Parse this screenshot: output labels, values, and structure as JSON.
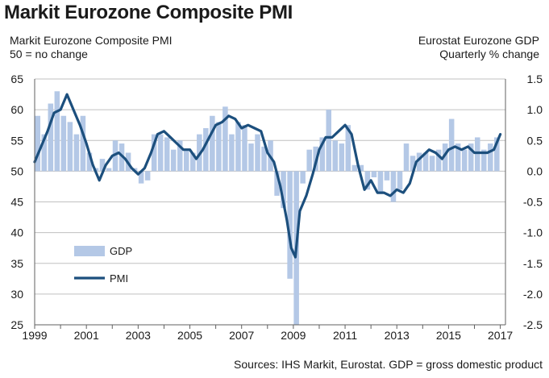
{
  "title": "Markit Eurozone Composite PMI",
  "left_axis_title": [
    "Markit Eurozone Composite PMI",
    "50 = no change"
  ],
  "right_axis_title": [
    "Eurostat Eurozone GDP",
    "Quarterly % change"
  ],
  "source": "Sources: IHS Markit, Eurostat. GDP = gross domestic product",
  "colors": {
    "gdp": "#b4c8e6",
    "pmi": "#1c4f7d",
    "grid": "#c0c0c0",
    "axis": "#606060"
  },
  "chart_data": {
    "type": "bar",
    "title": "Markit Eurozone Composite PMI",
    "x_ticks": [
      "1999",
      "2001",
      "2003",
      "2005",
      "2007",
      "2009",
      "2011",
      "2013",
      "2015",
      "2017"
    ],
    "xlim": [
      1999,
      2017.2
    ],
    "y_left": {
      "label": "Markit Eurozone Composite PMI",
      "ylim": [
        25,
        65
      ],
      "ticks": [
        25,
        30,
        35,
        40,
        45,
        50,
        55,
        60,
        65
      ]
    },
    "y_right": {
      "label": "Eurostat Eurozone GDP",
      "ylim": [
        -2.5,
        1.5
      ],
      "ticks": [
        "-2.5",
        "-2.0",
        "-1.5",
        "-1.0",
        "-0.5",
        "0.0",
        "0.5",
        "1.0",
        "1.5"
      ]
    },
    "grid": true,
    "legend": {
      "position": "lower-left",
      "entries": [
        "GDP",
        "PMI"
      ]
    },
    "series": [
      {
        "name": "GDP",
        "type": "bar",
        "axis": "right",
        "x": [
          1999.0,
          1999.25,
          1999.5,
          1999.75,
          2000.0,
          2000.25,
          2000.5,
          2000.75,
          2001.0,
          2001.25,
          2001.5,
          2001.75,
          2002.0,
          2002.25,
          2002.5,
          2002.75,
          2003.0,
          2003.25,
          2003.5,
          2003.75,
          2004.0,
          2004.25,
          2004.5,
          2004.75,
          2005.0,
          2005.25,
          2005.5,
          2005.75,
          2006.0,
          2006.25,
          2006.5,
          2006.75,
          2007.0,
          2007.25,
          2007.5,
          2007.75,
          2008.0,
          2008.25,
          2008.5,
          2008.75,
          2009.0,
          2009.25,
          2009.5,
          2009.75,
          2010.0,
          2010.25,
          2010.5,
          2010.75,
          2011.0,
          2011.25,
          2011.5,
          2011.75,
          2012.0,
          2012.25,
          2012.5,
          2012.75,
          2013.0,
          2013.25,
          2013.5,
          2013.75,
          2014.0,
          2014.25,
          2014.5,
          2014.75,
          2015.0,
          2015.25,
          2015.5,
          2015.75,
          2016.0,
          2016.25,
          2016.5,
          2016.75
        ],
        "values": [
          0.9,
          0.6,
          1.1,
          1.3,
          0.9,
          0.8,
          0.6,
          0.9,
          0.3,
          0.05,
          0.2,
          0.05,
          0.5,
          0.45,
          0.3,
          0.05,
          -0.2,
          -0.15,
          0.6,
          0.6,
          0.55,
          0.35,
          0.5,
          0.35,
          0.3,
          0.6,
          0.7,
          0.9,
          0.8,
          1.05,
          0.6,
          0.8,
          0.75,
          0.45,
          0.6,
          0.4,
          0.5,
          -0.4,
          -0.6,
          -1.75,
          -2.5,
          -0.2,
          0.35,
          0.4,
          0.55,
          1.0,
          0.5,
          0.45,
          0.75,
          0.1,
          0.1,
          -0.3,
          -0.1,
          -0.35,
          -0.15,
          -0.5,
          -0.3,
          0.45,
          0.25,
          0.3,
          0.3,
          0.25,
          0.35,
          0.45,
          0.85,
          0.45,
          0.35,
          0.45,
          0.55,
          0.35,
          0.45,
          0.55
        ]
      },
      {
        "name": "PMI",
        "type": "line",
        "axis": "left",
        "x": [
          1999.0,
          1999.25,
          1999.5,
          1999.75,
          2000.0,
          2000.25,
          2000.5,
          2000.75,
          2001.0,
          2001.25,
          2001.5,
          2001.75,
          2002.0,
          2002.25,
          2002.5,
          2002.75,
          2003.0,
          2003.25,
          2003.5,
          2003.75,
          2004.0,
          2004.25,
          2004.5,
          2004.75,
          2005.0,
          2005.25,
          2005.5,
          2005.75,
          2006.0,
          2006.25,
          2006.5,
          2006.75,
          2007.0,
          2007.25,
          2007.5,
          2007.75,
          2008.0,
          2008.25,
          2008.5,
          2008.75,
          2008.92,
          2009.08,
          2009.25,
          2009.5,
          2009.75,
          2010.0,
          2010.25,
          2010.5,
          2010.75,
          2011.0,
          2011.25,
          2011.5,
          2011.75,
          2012.0,
          2012.25,
          2012.5,
          2012.75,
          2013.0,
          2013.25,
          2013.5,
          2013.75,
          2014.0,
          2014.25,
          2014.5,
          2014.75,
          2015.0,
          2015.25,
          2015.5,
          2015.75,
          2016.0,
          2016.25,
          2016.5,
          2016.75,
          2017.0
        ],
        "values": [
          51.5,
          54.0,
          56.5,
          59.5,
          60.0,
          62.5,
          60.0,
          57.5,
          54.5,
          51.0,
          48.5,
          51.0,
          52.5,
          53.0,
          52.0,
          50.5,
          49.5,
          50.5,
          53.0,
          56.0,
          56.5,
          55.5,
          54.5,
          53.5,
          53.5,
          52.0,
          53.5,
          55.5,
          57.5,
          58.0,
          59.0,
          58.5,
          57.0,
          57.5,
          57.0,
          56.5,
          53.0,
          51.5,
          47.5,
          42.0,
          37.5,
          36.0,
          43.5,
          46.0,
          49.5,
          53.5,
          55.5,
          55.5,
          56.5,
          57.5,
          56.0,
          51.0,
          47.0,
          48.5,
          46.5,
          46.5,
          46.0,
          47.0,
          46.5,
          48.0,
          51.5,
          52.5,
          53.5,
          53.0,
          52.0,
          53.5,
          54.0,
          53.5,
          54.0,
          53.0,
          53.0,
          53.0,
          53.5,
          56.0
        ]
      }
    ]
  }
}
